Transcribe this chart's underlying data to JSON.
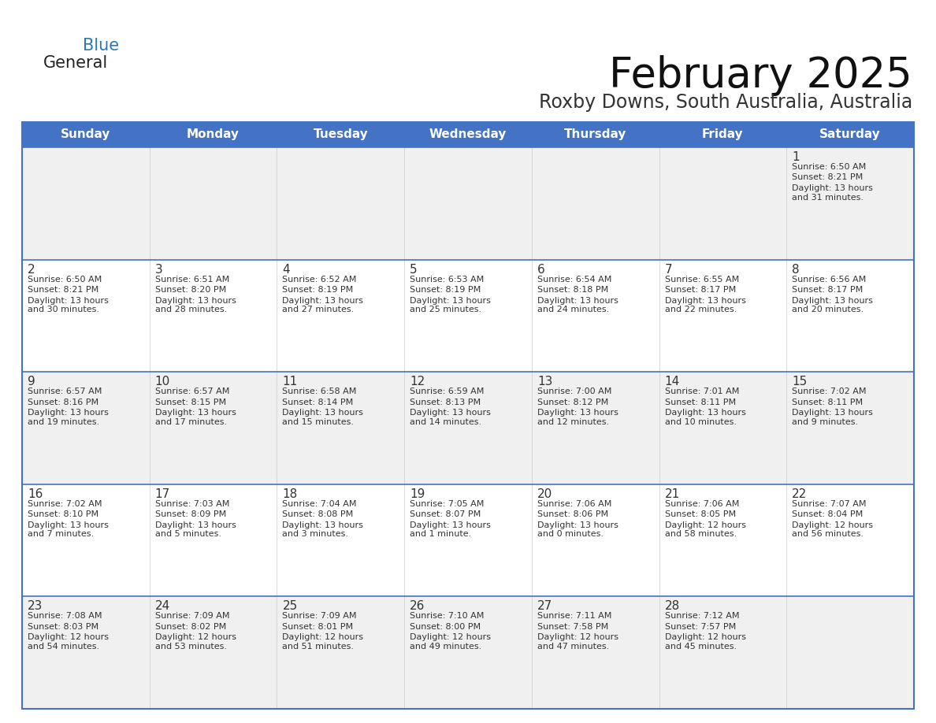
{
  "title": "February 2025",
  "subtitle": "Roxby Downs, South Australia, Australia",
  "days_of_week": [
    "Sunday",
    "Monday",
    "Tuesday",
    "Wednesday",
    "Thursday",
    "Friday",
    "Saturday"
  ],
  "header_bg": "#4472C4",
  "header_text": "#FFFFFF",
  "cell_bg_white": "#FFFFFF",
  "cell_bg_gray": "#F0F0F0",
  "cell_text": "#333333",
  "day_num_color": "#333333",
  "border_color": "#4472C4",
  "line_color": "#9DB8D9",
  "title_color": "#111111",
  "subtitle_color": "#333333",
  "logo_general_color": "#222222",
  "logo_blue_color": "#2878BE",
  "logo_triangle_color": "#2878BE",
  "weeks": [
    {
      "days": [
        {
          "date": "",
          "sunrise": "",
          "sunset": "",
          "daylight": ""
        },
        {
          "date": "",
          "sunrise": "",
          "sunset": "",
          "daylight": ""
        },
        {
          "date": "",
          "sunrise": "",
          "sunset": "",
          "daylight": ""
        },
        {
          "date": "",
          "sunrise": "",
          "sunset": "",
          "daylight": ""
        },
        {
          "date": "",
          "sunrise": "",
          "sunset": "",
          "daylight": ""
        },
        {
          "date": "",
          "sunrise": "",
          "sunset": "",
          "daylight": ""
        },
        {
          "date": "1",
          "sunrise": "6:50 AM",
          "sunset": "8:21 PM",
          "daylight": "13 hours\nand 31 minutes."
        }
      ]
    },
    {
      "days": [
        {
          "date": "2",
          "sunrise": "6:50 AM",
          "sunset": "8:21 PM",
          "daylight": "13 hours\nand 30 minutes."
        },
        {
          "date": "3",
          "sunrise": "6:51 AM",
          "sunset": "8:20 PM",
          "daylight": "13 hours\nand 28 minutes."
        },
        {
          "date": "4",
          "sunrise": "6:52 AM",
          "sunset": "8:19 PM",
          "daylight": "13 hours\nand 27 minutes."
        },
        {
          "date": "5",
          "sunrise": "6:53 AM",
          "sunset": "8:19 PM",
          "daylight": "13 hours\nand 25 minutes."
        },
        {
          "date": "6",
          "sunrise": "6:54 AM",
          "sunset": "8:18 PM",
          "daylight": "13 hours\nand 24 minutes."
        },
        {
          "date": "7",
          "sunrise": "6:55 AM",
          "sunset": "8:17 PM",
          "daylight": "13 hours\nand 22 minutes."
        },
        {
          "date": "8",
          "sunrise": "6:56 AM",
          "sunset": "8:17 PM",
          "daylight": "13 hours\nand 20 minutes."
        }
      ]
    },
    {
      "days": [
        {
          "date": "9",
          "sunrise": "6:57 AM",
          "sunset": "8:16 PM",
          "daylight": "13 hours\nand 19 minutes."
        },
        {
          "date": "10",
          "sunrise": "6:57 AM",
          "sunset": "8:15 PM",
          "daylight": "13 hours\nand 17 minutes."
        },
        {
          "date": "11",
          "sunrise": "6:58 AM",
          "sunset": "8:14 PM",
          "daylight": "13 hours\nand 15 minutes."
        },
        {
          "date": "12",
          "sunrise": "6:59 AM",
          "sunset": "8:13 PM",
          "daylight": "13 hours\nand 14 minutes."
        },
        {
          "date": "13",
          "sunrise": "7:00 AM",
          "sunset": "8:12 PM",
          "daylight": "13 hours\nand 12 minutes."
        },
        {
          "date": "14",
          "sunrise": "7:01 AM",
          "sunset": "8:11 PM",
          "daylight": "13 hours\nand 10 minutes."
        },
        {
          "date": "15",
          "sunrise": "7:02 AM",
          "sunset": "8:11 PM",
          "daylight": "13 hours\nand 9 minutes."
        }
      ]
    },
    {
      "days": [
        {
          "date": "16",
          "sunrise": "7:02 AM",
          "sunset": "8:10 PM",
          "daylight": "13 hours\nand 7 minutes."
        },
        {
          "date": "17",
          "sunrise": "7:03 AM",
          "sunset": "8:09 PM",
          "daylight": "13 hours\nand 5 minutes."
        },
        {
          "date": "18",
          "sunrise": "7:04 AM",
          "sunset": "8:08 PM",
          "daylight": "13 hours\nand 3 minutes."
        },
        {
          "date": "19",
          "sunrise": "7:05 AM",
          "sunset": "8:07 PM",
          "daylight": "13 hours\nand 1 minute."
        },
        {
          "date": "20",
          "sunrise": "7:06 AM",
          "sunset": "8:06 PM",
          "daylight": "13 hours\nand 0 minutes."
        },
        {
          "date": "21",
          "sunrise": "7:06 AM",
          "sunset": "8:05 PM",
          "daylight": "12 hours\nand 58 minutes."
        },
        {
          "date": "22",
          "sunrise": "7:07 AM",
          "sunset": "8:04 PM",
          "daylight": "12 hours\nand 56 minutes."
        }
      ]
    },
    {
      "days": [
        {
          "date": "23",
          "sunrise": "7:08 AM",
          "sunset": "8:03 PM",
          "daylight": "12 hours\nand 54 minutes."
        },
        {
          "date": "24",
          "sunrise": "7:09 AM",
          "sunset": "8:02 PM",
          "daylight": "12 hours\nand 53 minutes."
        },
        {
          "date": "25",
          "sunrise": "7:09 AM",
          "sunset": "8:01 PM",
          "daylight": "12 hours\nand 51 minutes."
        },
        {
          "date": "26",
          "sunrise": "7:10 AM",
          "sunset": "8:00 PM",
          "daylight": "12 hours\nand 49 minutes."
        },
        {
          "date": "27",
          "sunrise": "7:11 AM",
          "sunset": "7:58 PM",
          "daylight": "12 hours\nand 47 minutes."
        },
        {
          "date": "28",
          "sunrise": "7:12 AM",
          "sunset": "7:57 PM",
          "daylight": "12 hours\nand 45 minutes."
        },
        {
          "date": "",
          "sunrise": "",
          "sunset": "",
          "daylight": ""
        }
      ]
    }
  ]
}
